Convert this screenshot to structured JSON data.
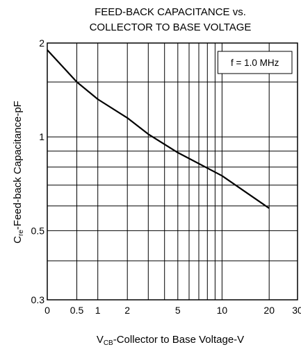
{
  "chart_data": {
    "type": "line",
    "title_lines": [
      "FEED-BACK CAPACITANCE vs.",
      "COLLECTOR TO BASE VOLTAGE"
    ],
    "xlabel": {
      "main": "V",
      "sub": "CB",
      "rest": "-Collector to Base Voltage-V"
    },
    "ylabel": {
      "main": "C",
      "sub": "re",
      "rest": "-Feed-back Capacitance-pF"
    },
    "annotation": "f = 1.0 MHz",
    "x_scale": "log (offset)",
    "y_scale": "log",
    "xlim": [
      0,
      30
    ],
    "ylim": [
      0.3,
      2
    ],
    "x_ticks": [
      {
        "value": 0,
        "label": "0"
      },
      {
        "value": 0.5,
        "label": "0.5"
      },
      {
        "value": 1,
        "label": "1"
      },
      {
        "value": 2,
        "label": "2"
      },
      {
        "value": 5,
        "label": "5"
      },
      {
        "value": 10,
        "label": "10"
      },
      {
        "value": 20,
        "label": "20"
      },
      {
        "value": 30,
        "label": "30"
      }
    ],
    "x_minor": [
      3,
      4,
      6,
      7,
      8,
      9
    ],
    "y_ticks": [
      {
        "value": 0.3,
        "label": "0.3"
      },
      {
        "value": 0.5,
        "label": "0.5"
      },
      {
        "value": 1,
        "label": "1"
      },
      {
        "value": 2,
        "label": "2"
      }
    ],
    "y_minor": [
      0.4,
      0.6,
      0.7,
      0.8,
      0.9,
      1.5
    ],
    "grid": true,
    "series": [
      {
        "x": [
          0,
          0.5,
          1,
          2,
          3,
          5,
          10,
          20
        ],
        "y": [
          1.9,
          1.5,
          1.32,
          1.15,
          1.02,
          0.89,
          0.75,
          0.59
        ]
      }
    ]
  }
}
